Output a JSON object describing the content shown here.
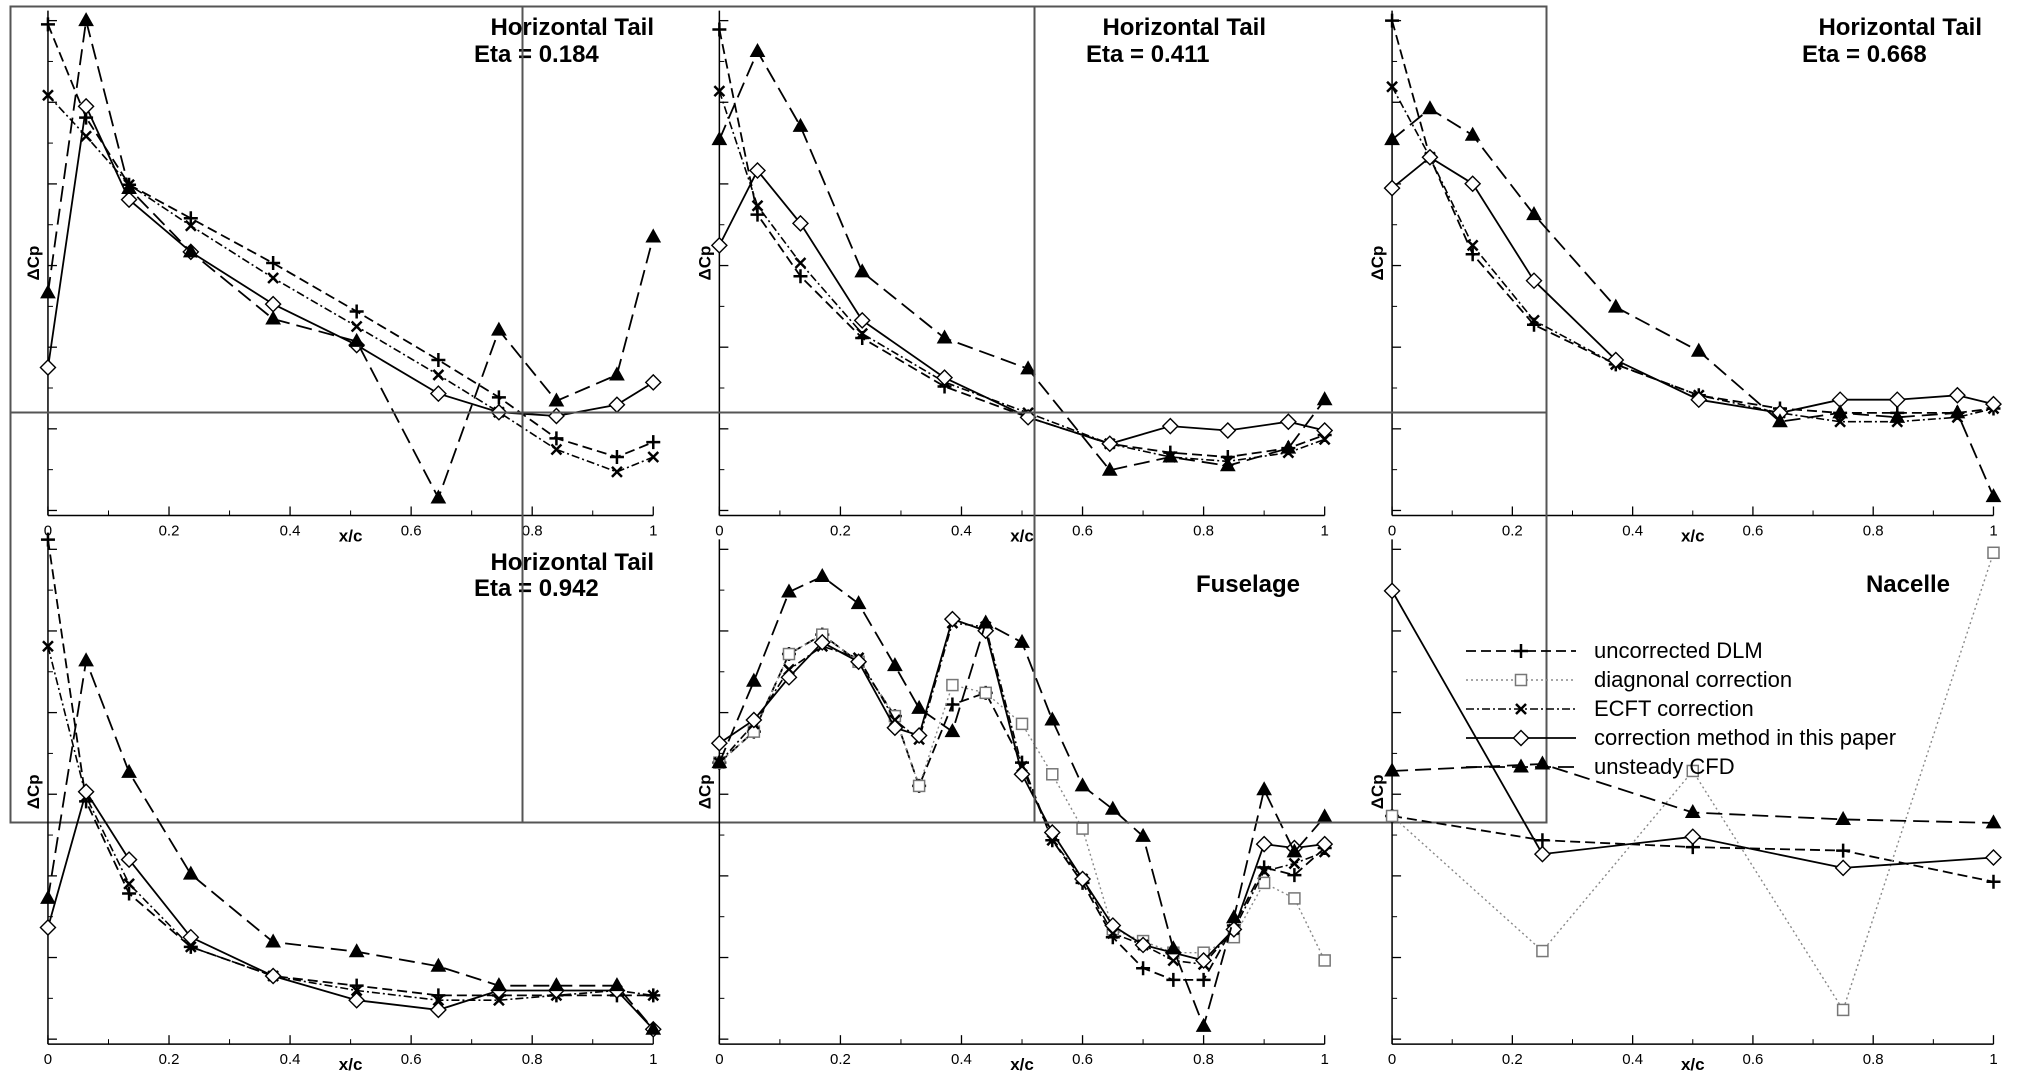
{
  "chart_data": [
    {
      "type": "line",
      "title": "Horizontal Tail",
      "subtitle": "Eta = 0.184",
      "xlabel": "x/c",
      "ylabel": "ΔCp",
      "xlim": [
        0,
        1
      ],
      "ylim": [
        -0.35,
        0.95
      ],
      "series": [
        {
          "name": "uncorrected DLM",
          "x": [
            0,
            0.063,
            0.134,
            0.236,
            0.372,
            0.51,
            0.645,
            0.745,
            0.84,
            0.94,
            1
          ],
          "values": [
            0.94,
            0.69,
            0.51,
            0.42,
            0.3,
            0.17,
            0.04,
            -0.06,
            -0.17,
            -0.22,
            -0.18
          ]
        },
        {
          "name": "ECFT correction",
          "x": [
            0,
            0.063,
            0.134,
            0.236,
            0.372,
            0.51,
            0.645,
            0.745,
            0.84,
            0.94,
            1
          ],
          "values": [
            0.75,
            0.64,
            0.51,
            0.4,
            0.26,
            0.13,
            0.0,
            -0.1,
            -0.2,
            -0.26,
            -0.22
          ]
        },
        {
          "name": "correction method in this paper",
          "x": [
            0,
            0.063,
            0.134,
            0.236,
            0.372,
            0.51,
            0.645,
            0.745,
            0.84,
            0.94,
            1
          ],
          "values": [
            0.02,
            0.72,
            0.47,
            0.33,
            0.19,
            0.08,
            -0.05,
            -0.1,
            -0.11,
            -0.08,
            -0.02
          ]
        },
        {
          "name": "unsteady CFD",
          "x": [
            0,
            0.063,
            0.134,
            0.236,
            0.372,
            0.51,
            0.645,
            0.745,
            0.84,
            0.94,
            1
          ],
          "values": [
            0.22,
            0.95,
            0.5,
            0.33,
            0.15,
            0.09,
            -0.33,
            0.12,
            -0.07,
            0.0,
            0.37
          ]
        }
      ]
    },
    {
      "type": "line",
      "title": "Horizontal Tail",
      "subtitle": "Eta = 0.411",
      "xlabel": "x/c",
      "ylabel": "ΔCp",
      "xlim": [
        0,
        1
      ],
      "ylim": [
        -0.2,
        0.9
      ],
      "series": [
        {
          "name": "uncorrected DLM",
          "x": [
            0,
            0.063,
            0.134,
            0.236,
            0.372,
            0.51,
            0.645,
            0.745,
            0.84,
            0.94,
            1
          ],
          "values": [
            0.88,
            0.46,
            0.32,
            0.18,
            0.07,
            0.0,
            -0.06,
            -0.08,
            -0.09,
            -0.07,
            -0.04
          ]
        },
        {
          "name": "ECFT correction",
          "x": [
            0,
            0.063,
            0.134,
            0.236,
            0.372,
            0.51,
            0.645,
            0.745,
            0.84,
            0.94,
            1
          ],
          "values": [
            0.74,
            0.48,
            0.35,
            0.19,
            0.08,
            0.01,
            -0.06,
            -0.09,
            -0.1,
            -0.08,
            -0.05
          ]
        },
        {
          "name": "correction method in this paper",
          "x": [
            0,
            0.063,
            0.134,
            0.236,
            0.372,
            0.51,
            0.645,
            0.745,
            0.84,
            0.94,
            1
          ],
          "values": [
            0.39,
            0.56,
            0.44,
            0.22,
            0.09,
            0.0,
            -0.06,
            -0.02,
            -0.03,
            -0.01,
            -0.03
          ]
        },
        {
          "name": "unsteady CFD",
          "x": [
            0,
            0.063,
            0.134,
            0.236,
            0.372,
            0.51,
            0.645,
            0.745,
            0.84,
            0.94,
            1
          ],
          "values": [
            0.63,
            0.83,
            0.66,
            0.33,
            0.18,
            0.11,
            -0.12,
            -0.09,
            -0.11,
            -0.07,
            0.04
          ]
        }
      ]
    },
    {
      "type": "line",
      "title": "Horizontal Tail",
      "subtitle": "Eta = 0.668",
      "xlabel": "x/c",
      "ylabel": "ΔCp",
      "xlim": [
        0,
        1
      ],
      "ylim": [
        -0.2,
        0.9
      ],
      "series": [
        {
          "name": "uncorrected DLM",
          "x": [
            0,
            0.063,
            0.134,
            0.236,
            0.372,
            0.51,
            0.645,
            0.745,
            0.84,
            0.94,
            1
          ],
          "values": [
            0.9,
            0.59,
            0.37,
            0.21,
            0.12,
            0.05,
            0.02,
            0.01,
            0.01,
            0.01,
            0.02
          ]
        },
        {
          "name": "ECFT correction",
          "x": [
            0,
            0.063,
            0.134,
            0.236,
            0.372,
            0.51,
            0.645,
            0.745,
            0.84,
            0.94,
            1
          ],
          "values": [
            0.75,
            0.59,
            0.39,
            0.22,
            0.12,
            0.05,
            0.01,
            -0.01,
            -0.01,
            0.0,
            0.02
          ]
        },
        {
          "name": "correction method in this paper",
          "x": [
            0,
            0.063,
            0.134,
            0.236,
            0.372,
            0.51,
            0.645,
            0.745,
            0.84,
            0.94,
            1
          ],
          "values": [
            0.52,
            0.59,
            0.53,
            0.31,
            0.13,
            0.04,
            0.01,
            0.04,
            0.04,
            0.05,
            0.03
          ]
        },
        {
          "name": "unsteady CFD",
          "x": [
            0,
            0.063,
            0.134,
            0.236,
            0.372,
            0.51,
            0.645,
            0.745,
            0.84,
            0.94,
            1
          ],
          "values": [
            0.63,
            0.7,
            0.64,
            0.46,
            0.25,
            0.15,
            -0.01,
            0.01,
            0.0,
            0.01,
            -0.18
          ]
        }
      ]
    },
    {
      "type": "line",
      "title": "Horizontal Tail",
      "subtitle": "Eta = 0.942",
      "xlabel": "x/c",
      "ylabel": "ΔCp",
      "xlim": [
        0,
        1
      ],
      "ylim": [
        -0.1,
        0.9
      ],
      "series": [
        {
          "name": "uncorrected DLM",
          "x": [
            0,
            0.063,
            0.134,
            0.236,
            0.372,
            0.51,
            0.645,
            0.745,
            0.84,
            0.94,
            1
          ],
          "values": [
            0.92,
            0.38,
            0.19,
            0.08,
            0.02,
            0.0,
            -0.02,
            -0.02,
            -0.02,
            -0.02,
            -0.02
          ]
        },
        {
          "name": "ECFT correction",
          "x": [
            0,
            0.063,
            0.134,
            0.236,
            0.372,
            0.51,
            0.645,
            0.745,
            0.84,
            0.94,
            1
          ],
          "values": [
            0.7,
            0.39,
            0.21,
            0.08,
            0.02,
            -0.01,
            -0.03,
            -0.03,
            -0.02,
            -0.01,
            -0.02
          ]
        },
        {
          "name": "correction method in this paper",
          "x": [
            0,
            0.063,
            0.134,
            0.236,
            0.372,
            0.51,
            0.645,
            0.745,
            0.84,
            0.94,
            1
          ],
          "values": [
            0.12,
            0.4,
            0.26,
            0.1,
            0.02,
            -0.03,
            -0.05,
            -0.01,
            -0.01,
            -0.01,
            -0.09
          ]
        },
        {
          "name": "unsteady CFD",
          "x": [
            0,
            0.063,
            0.134,
            0.236,
            0.372,
            0.51,
            0.645,
            0.745,
            0.84,
            0.94,
            1
          ],
          "values": [
            0.18,
            0.67,
            0.44,
            0.23,
            0.09,
            0.07,
            0.04,
            0.0,
            0.0,
            0.0,
            -0.09
          ]
        }
      ]
    },
    {
      "type": "line",
      "title": "Fuselage",
      "xlabel": "x/c",
      "ylabel": "ΔCp",
      "xlim": [
        0,
        1
      ],
      "ylim": [
        -0.3,
        0.95
      ],
      "series": [
        {
          "name": "uncorrected DLM",
          "x": [
            0,
            0.057,
            0.115,
            0.17,
            0.23,
            0.29,
            0.33,
            0.385,
            0.44,
            0.5,
            0.55,
            0.6,
            0.65,
            0.7,
            0.75,
            0.8,
            0.85,
            0.9,
            0.95,
            1
          ],
          "values": [
            0.4,
            0.48,
            0.68,
            0.73,
            0.66,
            0.52,
            0.34,
            0.55,
            0.58,
            0.4,
            0.2,
            0.09,
            -0.05,
            -0.13,
            -0.16,
            -0.16,
            -0.02,
            0.13,
            0.11,
            0.18
          ]
        },
        {
          "name": "diagnonal correction",
          "x": [
            0,
            0.057,
            0.115,
            0.17,
            0.23,
            0.29,
            0.33,
            0.385,
            0.44,
            0.5,
            0.55,
            0.6,
            0.65,
            0.7,
            0.75,
            0.8,
            0.85,
            0.9,
            0.95,
            1
          ],
          "values": [
            0.4,
            0.48,
            0.68,
            0.73,
            0.66,
            0.52,
            0.34,
            0.6,
            0.58,
            0.5,
            0.37,
            0.23,
            -0.03,
            -0.06,
            -0.09,
            -0.09,
            -0.05,
            0.09,
            0.05,
            -0.11
          ]
        },
        {
          "name": "ECFT correction",
          "x": [
            0,
            0.057,
            0.115,
            0.17,
            0.23,
            0.29,
            0.33,
            0.385,
            0.44,
            0.5,
            0.55,
            0.6,
            0.65,
            0.7,
            0.75,
            0.8,
            0.85,
            0.9,
            0.95,
            1
          ],
          "values": [
            0.4,
            0.5,
            0.64,
            0.7,
            0.67,
            0.51,
            0.46,
            0.76,
            0.75,
            0.39,
            0.2,
            0.1,
            -0.04,
            -0.07,
            -0.11,
            -0.12,
            -0.03,
            0.12,
            0.14,
            0.17
          ]
        },
        {
          "name": "correction method in this paper",
          "x": [
            0,
            0.057,
            0.115,
            0.17,
            0.23,
            0.29,
            0.33,
            0.385,
            0.44,
            0.5,
            0.55,
            0.6,
            0.65,
            0.7,
            0.75,
            0.8,
            0.85,
            0.9,
            0.95,
            1
          ],
          "values": [
            0.45,
            0.51,
            0.62,
            0.71,
            0.66,
            0.49,
            0.47,
            0.77,
            0.74,
            0.37,
            0.22,
            0.1,
            -0.02,
            -0.07,
            -0.09,
            -0.11,
            -0.03,
            0.19,
            0.18,
            0.19
          ]
        },
        {
          "name": "unsteady CFD",
          "x": [
            0,
            0.057,
            0.115,
            0.17,
            0.23,
            0.29,
            0.33,
            0.385,
            0.44,
            0.5,
            0.55,
            0.6,
            0.65,
            0.7,
            0.75,
            0.8,
            0.85,
            0.9,
            0.95,
            1
          ],
          "values": [
            0.4,
            0.61,
            0.84,
            0.88,
            0.81,
            0.65,
            0.54,
            0.48,
            0.76,
            0.71,
            0.51,
            0.34,
            0.28,
            0.21,
            -0.08,
            -0.28,
            0.0,
            0.33,
            0.17,
            0.26
          ]
        }
      ]
    },
    {
      "type": "line",
      "title": "Nacelle",
      "xlabel": "x/c",
      "ylabel": "ΔCp",
      "xlim": [
        0,
        1
      ],
      "ylim": [
        -0.4,
        1.0
      ],
      "series": [
        {
          "name": "uncorrected DLM",
          "x": [
            0,
            0.25,
            0.5,
            0.75,
            1
          ],
          "values": [
            0.23,
            0.16,
            0.14,
            0.13,
            0.04
          ]
        },
        {
          "name": "diagnonal correction",
          "x": [
            0,
            0.25,
            0.5,
            0.75,
            1
          ],
          "values": [
            0.23,
            -0.16,
            0.36,
            -0.33,
            0.99
          ]
        },
        {
          "name": "correction method in this paper",
          "x": [
            0,
            0.25,
            0.5,
            0.75,
            1
          ],
          "values": [
            0.88,
            0.12,
            0.17,
            0.08,
            0.11
          ]
        },
        {
          "name": "unsteady CFD",
          "x": [
            0,
            0.25,
            0.5,
            0.75,
            1
          ],
          "values": [
            0.36,
            0.38,
            0.24,
            0.22,
            0.21
          ]
        }
      ]
    }
  ],
  "legend": {
    "items": [
      {
        "label": "uncorrected DLM",
        "series": "uncorrected DLM"
      },
      {
        "label": "diagnonal correction",
        "series": "diagnonal correction"
      },
      {
        "label": "ECFT correction",
        "series": "ECFT correction"
      },
      {
        "label": "correction method in this paper",
        "series": "correction method in this paper"
      },
      {
        "label": "unsteady CFD",
        "series": "unsteady CFD"
      }
    ]
  },
  "xticks": [
    "0",
    "0.2",
    "0.4",
    "0.6",
    "0.8",
    "1"
  ]
}
